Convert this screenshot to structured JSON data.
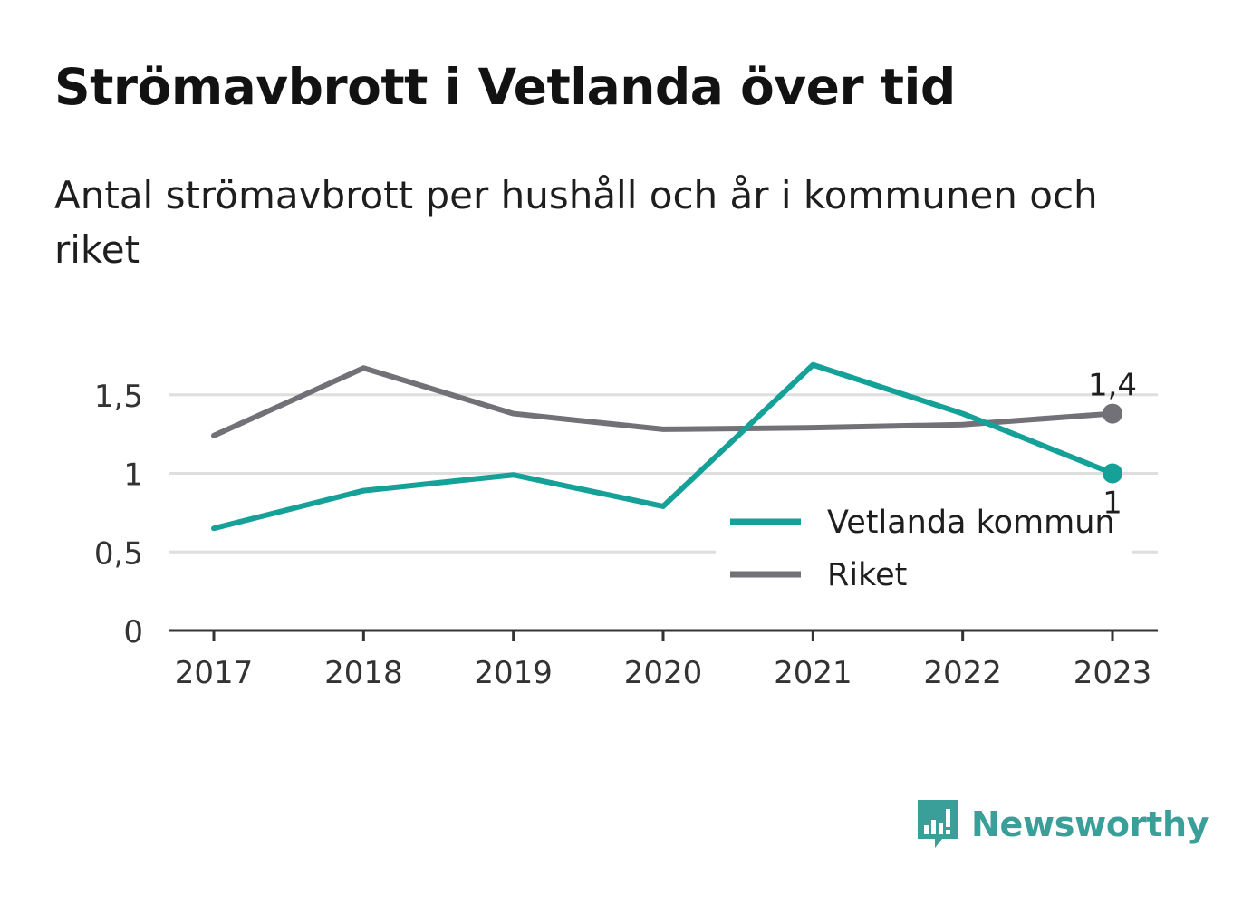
{
  "header": {
    "title": "Strömavbrott i Vetlanda över tid",
    "subtitle": "Antal strömavbrott per hushåll och år i kommunen och riket"
  },
  "chart_data": {
    "type": "line",
    "x": [
      "2017",
      "2018",
      "2019",
      "2020",
      "2021",
      "2022",
      "2023"
    ],
    "y_ticks": [
      {
        "value": 0,
        "label": "0"
      },
      {
        "value": 0.5,
        "label": "0,5"
      },
      {
        "value": 1,
        "label": "1"
      },
      {
        "value": 1.5,
        "label": "1,5"
      }
    ],
    "ylim": [
      0,
      1.8
    ],
    "grid": true,
    "legend_position": "bottom-right",
    "series": [
      {
        "name": "Vetlanda kommun",
        "color": "#15a198",
        "values": [
          0.65,
          0.89,
          0.99,
          0.79,
          1.69,
          1.38,
          1.0
        ],
        "end_label": "1"
      },
      {
        "name": "Riket",
        "color": "#727178",
        "values": [
          1.24,
          1.67,
          1.38,
          1.28,
          1.29,
          1.31,
          1.38
        ],
        "end_label": "1,4"
      }
    ]
  },
  "brand": {
    "name": "Newsworthy",
    "logo_icon": "bar-chart-speech-bubble-icon",
    "color": "#3a9f98"
  }
}
